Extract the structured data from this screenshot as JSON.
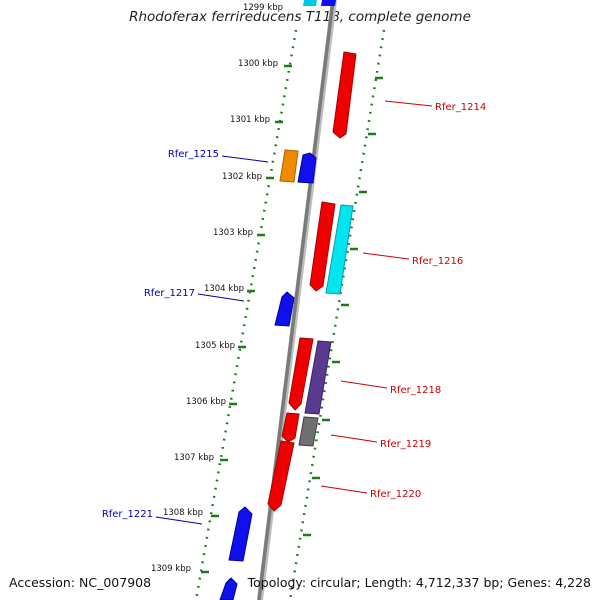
{
  "title": "Rhodoferax ferrireducens T118, complete genome",
  "footer": {
    "accession": "Accession: NC_007908",
    "summary": "Topology: circular; Length: 4,712,337 bp; Genes: 4,228"
  },
  "axis_labels": [
    "1299 kbp",
    "1300 kbp",
    "1301 kbp",
    "1302 kbp",
    "1303 kbp",
    "1304 kbp",
    "1305 kbp",
    "1306 kbp",
    "1307 kbp",
    "1308 kbp",
    "1309 kbp"
  ],
  "gene_labels": [
    "Rfer_1214",
    "Rfer_1215",
    "Rfer_1216",
    "Rfer_1217",
    "Rfer_1218",
    "Rfer_1219",
    "Rfer_1220",
    "Rfer_1221"
  ],
  "colors": {
    "backbone": "#7d7d7d",
    "tick": "#1f7a1f",
    "forward_label": "#0000aa",
    "reverse_label": "#cc0000",
    "red": "#ee0000",
    "blue": "#1010ee",
    "cyan": "#00e5ee",
    "orange": "#f08a00",
    "purple": "#5a3a8e",
    "gray": "#707070"
  }
}
